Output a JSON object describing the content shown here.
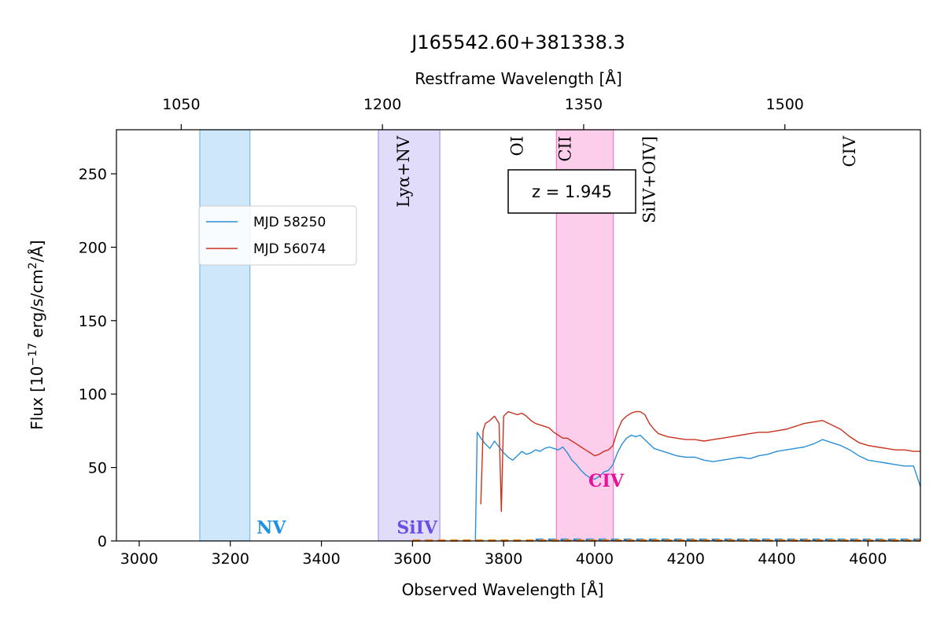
{
  "chart_data": {
    "type": "line",
    "title": "J165542.60+381338.3",
    "xlabel": "Observed Wavelength [Å]",
    "ylabel_main": "Flux [10",
    "ylabel_sup": "−17",
    "ylabel_mid": " erg/s/cm",
    "ylabel_sup2": "2",
    "ylabel_end": "/Å]",
    "top_xlabel": "Restframe Wavelength [Å]",
    "xlim": [
      2950,
      4715
    ],
    "ylim": [
      0,
      280
    ],
    "grid": false,
    "legend_position": "upper-left",
    "x_ticks": [
      3000,
      3200,
      3400,
      3600,
      3800,
      4000,
      4200,
      4400,
      4600
    ],
    "x_tick_labels": [
      "3000",
      "3200",
      "3400",
      "3600",
      "3800",
      "4000",
      "4200",
      "4400",
      "4600"
    ],
    "y_ticks": [
      0,
      50,
      100,
      150,
      200,
      250
    ],
    "y_tick_labels": [
      "0",
      "50",
      "100",
      "150",
      "200",
      "250"
    ],
    "top_ticks": [
      1050,
      1200,
      1350,
      1500
    ],
    "top_tick_labels": [
      "1050",
      "1200",
      "1350",
      "1500"
    ],
    "redshift_label": "z = 1.945",
    "shaded_regions": [
      {
        "x0": 3133,
        "x1": 3243,
        "color": "#a8d4f5",
        "edge": "#7ab8ea",
        "label": "NV",
        "label_color": "#1e90e6",
        "label_x": 3290,
        "label_y": 5
      },
      {
        "x0": 3525,
        "x1": 3660,
        "color": "#c9bff5",
        "edge": "#a89be6",
        "label": "SiIV",
        "label_color": "#6a4fe0",
        "label_x": 3610,
        "label_y": 5
      },
      {
        "x0": 3916,
        "x1": 4041,
        "color": "#fca5dc",
        "edge": "#f07cc6",
        "label": "CIV",
        "label_color": "#e6139a",
        "label_x": 4025,
        "label_y": 37
      }
    ],
    "line_markers": [
      {
        "label": "Lyα+NV",
        "x": 3580,
        "y_top": 265
      },
      {
        "label": "OI",
        "x": 3830,
        "y_top": 265
      },
      {
        "label": "CII",
        "x": 3935,
        "y_top": 265
      },
      {
        "label": "SiIV+OIV]",
        "x": 4120,
        "y_top": 265
      },
      {
        "label": "CIV",
        "x": 4560,
        "y_top": 265
      }
    ],
    "series": [
      {
        "name": "MJD 58250",
        "color": "#2a8fd6",
        "x": [
          3738,
          3742,
          3750,
          3760,
          3770,
          3780,
          3790,
          3800,
          3810,
          3820,
          3830,
          3840,
          3850,
          3860,
          3870,
          3880,
          3890,
          3900,
          3910,
          3920,
          3930,
          3940,
          3950,
          3960,
          3970,
          3980,
          3990,
          4000,
          4010,
          4020,
          4030,
          4040,
          4050,
          4060,
          4070,
          4080,
          4090,
          4100,
          4110,
          4120,
          4130,
          4140,
          4160,
          4180,
          4200,
          4220,
          4240,
          4260,
          4280,
          4300,
          4320,
          4340,
          4360,
          4380,
          4400,
          4420,
          4440,
          4460,
          4480,
          4500,
          4520,
          4540,
          4560,
          4580,
          4600,
          4620,
          4640,
          4660,
          4680,
          4700,
          4715
        ],
        "y": [
          0,
          74,
          70,
          66,
          63,
          68,
          64,
          60,
          57,
          55,
          58,
          61,
          59,
          60,
          62,
          61,
          63,
          64,
          63,
          62,
          64,
          60,
          55,
          52,
          48,
          45,
          43,
          42,
          44,
          47,
          48,
          52,
          60,
          66,
          70,
          72,
          71,
          72,
          69,
          66,
          63,
          62,
          60,
          58,
          57,
          57,
          55,
          54,
          55,
          56,
          57,
          56,
          58,
          59,
          61,
          62,
          63,
          64,
          66,
          69,
          67,
          65,
          62,
          58,
          55,
          54,
          53,
          52,
          51,
          51,
          37
        ]
      },
      {
        "name": "MJD 56074",
        "color": "#c8321e",
        "x": [
          3750,
          3755,
          3760,
          3770,
          3780,
          3790,
          3795,
          3800,
          3810,
          3820,
          3830,
          3840,
          3850,
          3860,
          3870,
          3880,
          3890,
          3900,
          3910,
          3920,
          3930,
          3940,
          3950,
          3960,
          3970,
          3980,
          3990,
          4000,
          4010,
          4020,
          4030,
          4040,
          4050,
          4060,
          4070,
          4080,
          4090,
          4100,
          4110,
          4120,
          4130,
          4140,
          4160,
          4180,
          4200,
          4220,
          4240,
          4260,
          4280,
          4300,
          4320,
          4340,
          4360,
          4380,
          4400,
          4420,
          4440,
          4460,
          4480,
          4500,
          4520,
          4540,
          4560,
          4580,
          4600,
          4620,
          4640,
          4660,
          4680,
          4700,
          4715
        ],
        "y": [
          25,
          75,
          80,
          82,
          85,
          80,
          20,
          85,
          88,
          87,
          86,
          87,
          85,
          82,
          80,
          79,
          78,
          77,
          74,
          72,
          70,
          70,
          68,
          66,
          64,
          62,
          60,
          58,
          59,
          61,
          62,
          65,
          75,
          82,
          85,
          87,
          88,
          88,
          86,
          80,
          76,
          73,
          71,
          70,
          69,
          69,
          68,
          69,
          70,
          71,
          72,
          73,
          74,
          74,
          75,
          76,
          78,
          80,
          81,
          82,
          79,
          76,
          71,
          67,
          65,
          64,
          63,
          62,
          62,
          61,
          61
        ]
      }
    ]
  }
}
